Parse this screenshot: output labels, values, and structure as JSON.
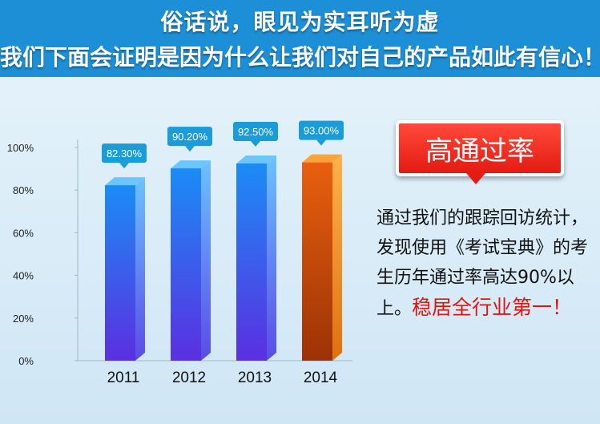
{
  "banner": {
    "line1": "俗话说，眼见为实耳听为虚",
    "line2": "我们下面会证明是因为什么让我们对自己的产品如此有信心！"
  },
  "badge": {
    "label": "高通过率"
  },
  "description": {
    "text": "通过我们的跟踪回访统计，发现使用《考试宝典》的考生历年通过率高达90%以上。",
    "highlight": "稳居全行业第一！"
  },
  "colors": {
    "banner": "#1c8fd6",
    "bar_blue": "#1f7ff0",
    "bar_orange": "#e8610e",
    "badge_red": "#e31b12",
    "label_box": "#1a9cd8"
  },
  "chart_data": {
    "type": "bar",
    "categories": [
      "2011",
      "2012",
      "2013",
      "2014"
    ],
    "values": [
      82.3,
      90.2,
      92.5,
      93.0
    ],
    "data_labels": [
      "82.30%",
      "90.20%",
      "92.50%",
      "93.00%"
    ],
    "ytick_labels": [
      "0%",
      "20%",
      "40%",
      "60%",
      "80%",
      "100%"
    ],
    "ylim": [
      0,
      100
    ],
    "highlight_index": 3,
    "grid": true
  }
}
